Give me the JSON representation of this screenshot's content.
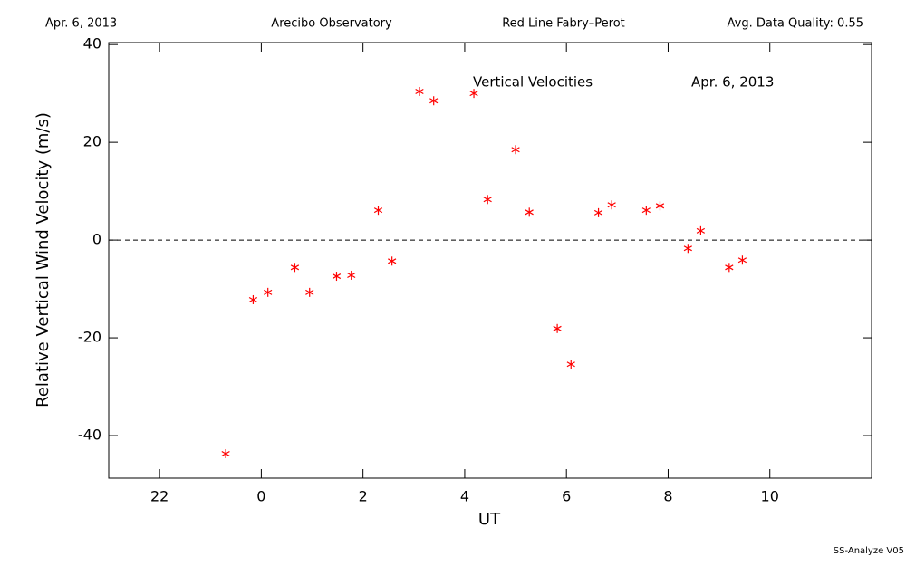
{
  "header": {
    "date": "Apr. 6, 2013",
    "site": "Arecibo Observatory",
    "instrument": "Red Line Fabry–Perot",
    "quality": "Avg. Data Quality: 0.55"
  },
  "footer": "SS-Analyze V05",
  "chart_data": {
    "type": "scatter",
    "annotations": [
      "Vertical Velocities",
      "Apr. 6, 2013"
    ],
    "x_label": "UT",
    "y_label": "Relative Vertical Wind Velocity (m/s)",
    "xlim": [
      -3,
      12
    ],
    "ylim": [
      -48.7,
      40.4
    ],
    "xticks": [
      {
        "value": -2,
        "label": "22"
      },
      0,
      2,
      4,
      6,
      8,
      10
    ],
    "yticks": [
      -40,
      -20,
      0,
      20,
      40
    ],
    "reference_line": 0,
    "series": [
      {
        "color": "#ff0000",
        "x": [
          -0.7,
          -0.16,
          0.13,
          0.66,
          0.95,
          1.48,
          1.77,
          2.3,
          2.57,
          3.11,
          3.39,
          4.18,
          4.45,
          5.0,
          5.27,
          5.82,
          6.09,
          6.63,
          6.89,
          7.57,
          7.84,
          8.39,
          8.64,
          9.2,
          9.46
        ],
        "values": [
          -43.7,
          -12.2,
          -10.7,
          -5.6,
          -10.7,
          -7.4,
          -7.2,
          6.1,
          -4.3,
          30.4,
          28.5,
          30.0,
          8.3,
          18.5,
          5.7,
          -18.1,
          -25.4,
          5.6,
          7.2,
          6.1,
          7.0,
          -1.7,
          1.9,
          -5.6,
          -4.1
        ]
      }
    ]
  }
}
